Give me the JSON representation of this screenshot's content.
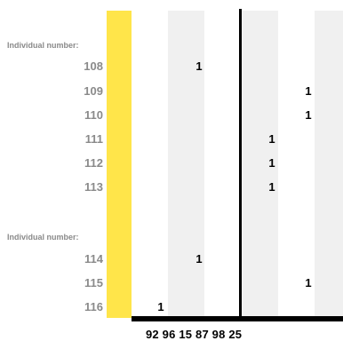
{
  "groups": [
    {
      "label": "Individual number:"
    },
    {
      "label": "Individual number:"
    }
  ],
  "rows": [
    {
      "id": "108",
      "value": "1",
      "col": 2
    },
    {
      "id": "109",
      "value": "1",
      "col": 5
    },
    {
      "id": "110",
      "value": "1",
      "col": 5
    },
    {
      "id": "111",
      "value": "1",
      "col": 4
    },
    {
      "id": "112",
      "value": "1",
      "col": 4
    },
    {
      "id": "113",
      "value": "1",
      "col": 4
    },
    {
      "id": "114",
      "value": "1",
      "col": 2
    },
    {
      "id": "115",
      "value": "1",
      "col": 5
    },
    {
      "id": "116",
      "value": "1",
      "col": 1
    }
  ],
  "x_axis": {
    "labels": "92 96 15 87 98 25"
  },
  "colors": {
    "highlight_column": "#ffe54a",
    "alt_column": "#f0f0f0",
    "row_label": "#8a8a8a"
  }
}
